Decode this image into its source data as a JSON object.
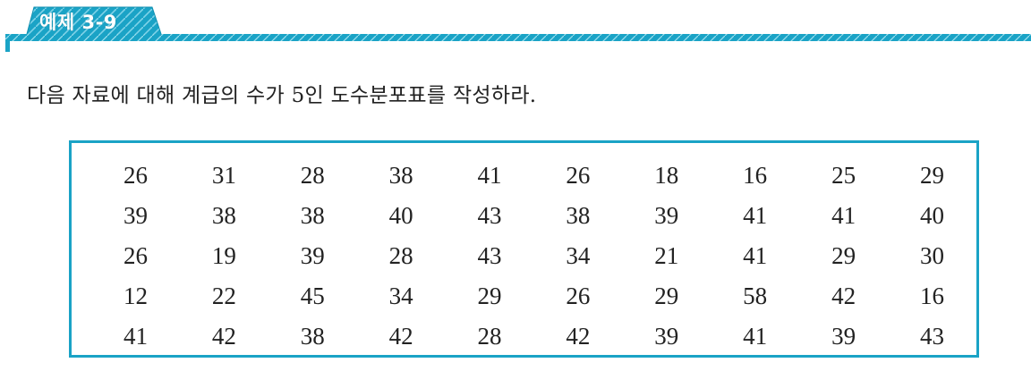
{
  "header": {
    "badge_label": "예제 3-9"
  },
  "problem": {
    "text": "다음 자료에 대해 계급의 수가 5인 도수분포표를 작성하라."
  },
  "colors": {
    "accent": "#1aa3c6",
    "accent_dark": "#0b6f86"
  },
  "data_table": {
    "rows": [
      [
        "26",
        "31",
        "28",
        "38",
        "41",
        "26",
        "18",
        "16",
        "25",
        "29"
      ],
      [
        "39",
        "38",
        "38",
        "40",
        "43",
        "38",
        "39",
        "41",
        "41",
        "40"
      ],
      [
        "26",
        "19",
        "39",
        "28",
        "43",
        "34",
        "21",
        "41",
        "29",
        "30"
      ],
      [
        "12",
        "22",
        "45",
        "34",
        "29",
        "26",
        "29",
        "58",
        "42",
        "16"
      ],
      [
        "41",
        "42",
        "38",
        "42",
        "28",
        "42",
        "39",
        "41",
        "39",
        "43"
      ]
    ]
  }
}
